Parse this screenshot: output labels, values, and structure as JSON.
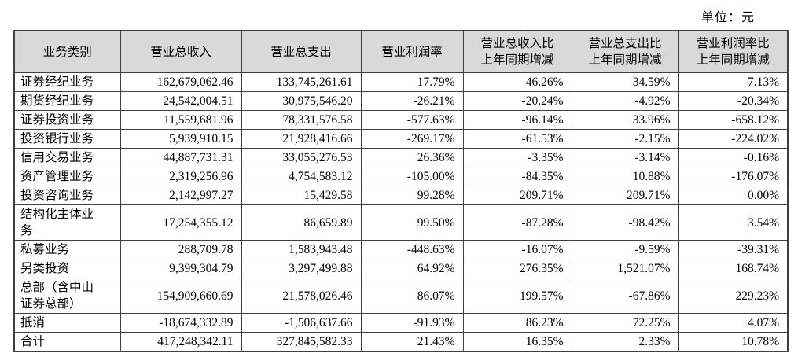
{
  "unit_label": "单位：元",
  "table": {
    "headers": [
      "业务类别",
      "营业总收入",
      "营业总支出",
      "营业利润率",
      "营业总收入比\n上年同期增减",
      "营业总支出比\n上年同期增减",
      "营业利润率比\n上年同期增减"
    ],
    "rows": [
      [
        "证券经纪业务",
        "162,679,062.46",
        "133,745,261.61",
        "17.79%",
        "46.26%",
        "34.59%",
        "7.13%"
      ],
      [
        "期货经纪业务",
        "24,542,004.51",
        "30,975,546.20",
        "-26.21%",
        "-20.24%",
        "-4.92%",
        "-20.34%"
      ],
      [
        "证券投资业务",
        "11,559,681.96",
        "78,331,576.58",
        "-577.63%",
        "-96.14%",
        "33.96%",
        "-658.12%"
      ],
      [
        "投资银行业务",
        "5,939,910.15",
        "21,928,416.66",
        "-269.17%",
        "-61.53%",
        "-2.15%",
        "-224.02%"
      ],
      [
        "信用交易业务",
        "44,887,731.31",
        "33,055,276.53",
        "26.36%",
        "-3.35%",
        "-3.14%",
        "-0.16%"
      ],
      [
        "资产管理业务",
        "2,319,256.96",
        "4,754,583.12",
        "-105.00%",
        "-84.35%",
        "10.88%",
        "-176.07%"
      ],
      [
        "投资咨询业务",
        "2,142,997.27",
        "15,429.58",
        "99.28%",
        "209.71%",
        "209.71%",
        "0.00%"
      ],
      [
        "结构化主体业\n务",
        "17,254,355.12",
        "86,659.89",
        "99.50%",
        "-87.28%",
        "-98.42%",
        "3.54%"
      ],
      [
        "私募业务",
        "288,709.78",
        "1,583,943.48",
        "-448.63%",
        "-16.07%",
        "-9.59%",
        "-39.31%"
      ],
      [
        "另类投资",
        "9,399,304.79",
        "3,297,499.88",
        "64.92%",
        "276.35%",
        "1,521.07%",
        "168.74%"
      ],
      [
        "总部（含中山\n证券总部）",
        "154,909,660.69",
        "21,578,026.46",
        "86.07%",
        "199.57%",
        "-67.86%",
        "229.23%"
      ],
      [
        "抵消",
        "-18,674,332.89",
        "-1,506,637.66",
        "-91.93%",
        "86.23%",
        "72.25%",
        "4.07%"
      ],
      [
        "合计",
        "417,248,342.11",
        "327,845,582.33",
        "21.43%",
        "16.35%",
        "2.33%",
        "10.78%"
      ]
    ]
  }
}
